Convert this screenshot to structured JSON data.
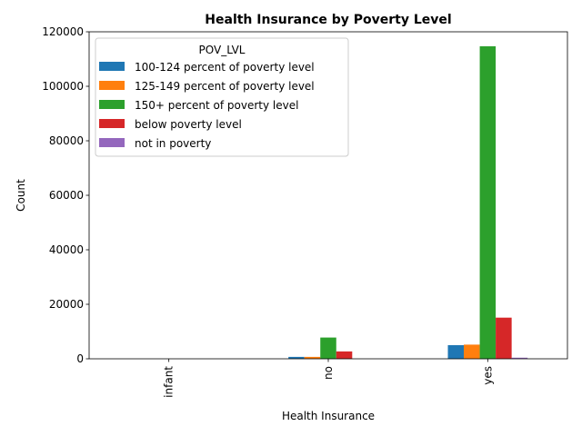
{
  "chart_data": {
    "type": "bar",
    "title": "Health Insurance by Poverty Level",
    "xlabel": "Health Insurance",
    "ylabel": "Count",
    "categories": [
      "infant",
      "no",
      "yes"
    ],
    "ylim": [
      0,
      120000
    ],
    "yticks": [
      0,
      20000,
      40000,
      60000,
      80000,
      100000,
      120000
    ],
    "grid": false,
    "legend": {
      "title": "POV_LVL",
      "placement": "top-left"
    },
    "series": [
      {
        "name": "100-124 percent of poverty level",
        "color": "#1f77b4",
        "values": [
          0,
          700,
          5000
        ]
      },
      {
        "name": "125-149 percent of poverty level",
        "color": "#ff7f0e",
        "values": [
          0,
          700,
          5200
        ]
      },
      {
        "name": "150+ percent of poverty level",
        "color": "#2ca02c",
        "values": [
          0,
          7800,
          114700
        ]
      },
      {
        "name": "below poverty level",
        "color": "#d62728",
        "values": [
          0,
          2700,
          15100
        ]
      },
      {
        "name": "not in poverty",
        "color": "#9467bd",
        "values": [
          0,
          0,
          400
        ]
      }
    ]
  }
}
